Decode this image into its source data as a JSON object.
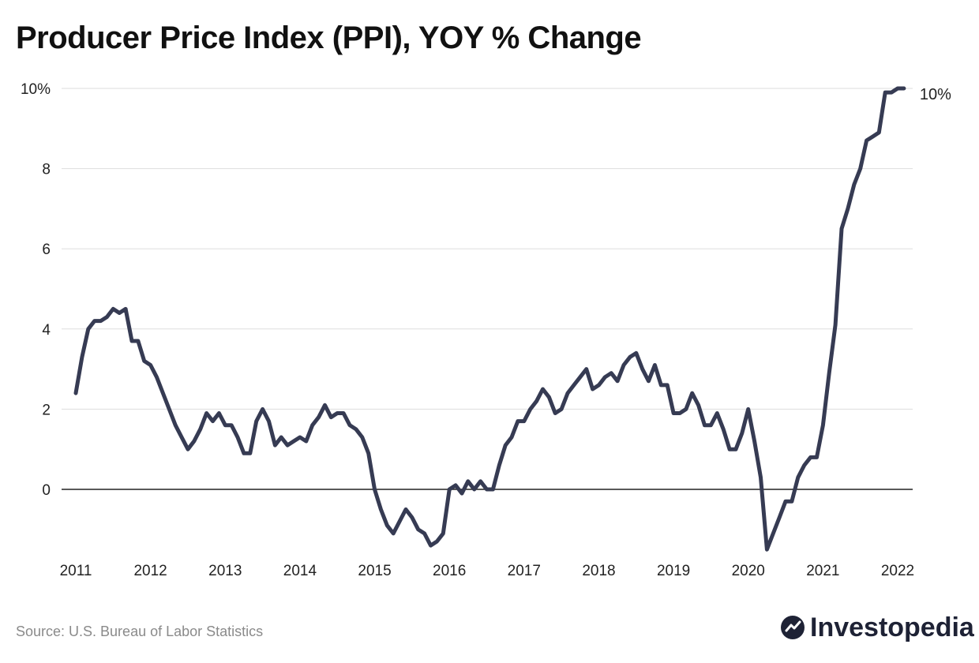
{
  "chart_data": {
    "type": "line",
    "title": "Producer Price Index (PPI), YOY % Change",
    "xlabel": "",
    "ylabel": "",
    "x_start": 2011,
    "x_step": 0.08333333,
    "xlim": [
      2011,
      2022.1667
    ],
    "ylim": [
      -1.5,
      10
    ],
    "xticks": [
      2011,
      2012,
      2013,
      2014,
      2015,
      2016,
      2017,
      2018,
      2019,
      2020,
      2021,
      2022
    ],
    "xtick_labels": [
      "2011",
      "2012",
      "2013",
      "2014",
      "2015",
      "2016",
      "2017",
      "2018",
      "2019",
      "2020",
      "2021",
      "2022"
    ],
    "yticks": [
      0,
      2,
      4,
      6,
      8,
      10
    ],
    "ytick_labels": [
      "0",
      "2",
      "4",
      "6",
      "8",
      "10%"
    ],
    "grid": true,
    "line_color": "#363b53",
    "end_label": "10%",
    "series": [
      {
        "name": "PPI YOY % Change",
        "values": [
          2.4,
          3.3,
          4.0,
          4.2,
          4.2,
          4.3,
          4.5,
          4.4,
          4.5,
          3.7,
          3.7,
          3.2,
          3.1,
          2.8,
          2.4,
          2.0,
          1.6,
          1.3,
          1.0,
          1.2,
          1.5,
          1.9,
          1.7,
          1.9,
          1.6,
          1.6,
          1.3,
          0.9,
          0.9,
          1.7,
          2.0,
          1.7,
          1.1,
          1.3,
          1.1,
          1.2,
          1.3,
          1.2,
          1.6,
          1.8,
          2.1,
          1.8,
          1.9,
          1.9,
          1.6,
          1.5,
          1.3,
          0.9,
          0.0,
          -0.5,
          -0.9,
          -1.1,
          -0.8,
          -0.5,
          -0.7,
          -1.0,
          -1.1,
          -1.4,
          -1.3,
          -1.1,
          0.0,
          0.1,
          -0.1,
          0.2,
          0.0,
          0.2,
          0.0,
          0.0,
          0.6,
          1.1,
          1.3,
          1.7,
          1.7,
          2.0,
          2.2,
          2.5,
          2.3,
          1.9,
          2.0,
          2.4,
          2.6,
          2.8,
          3.0,
          2.5,
          2.6,
          2.8,
          2.9,
          2.7,
          3.1,
          3.3,
          3.4,
          3.0,
          2.7,
          3.1,
          2.6,
          2.6,
          1.9,
          1.9,
          2.0,
          2.4,
          2.1,
          1.6,
          1.6,
          1.9,
          1.5,
          1.0,
          1.0,
          1.4,
          2.0,
          1.2,
          0.3,
          -1.5,
          -1.1,
          -0.7,
          -0.3,
          -0.3,
          0.3,
          0.6,
          0.8,
          0.8,
          1.6,
          2.9,
          4.1,
          6.5,
          7.0,
          7.6,
          8.0,
          8.7,
          8.8,
          8.9,
          9.9,
          9.9,
          10.0,
          10.0
        ]
      }
    ]
  },
  "footer": {
    "source": "Source: U.S. Bureau of Labor Statistics",
    "brand": "Investopedia"
  }
}
